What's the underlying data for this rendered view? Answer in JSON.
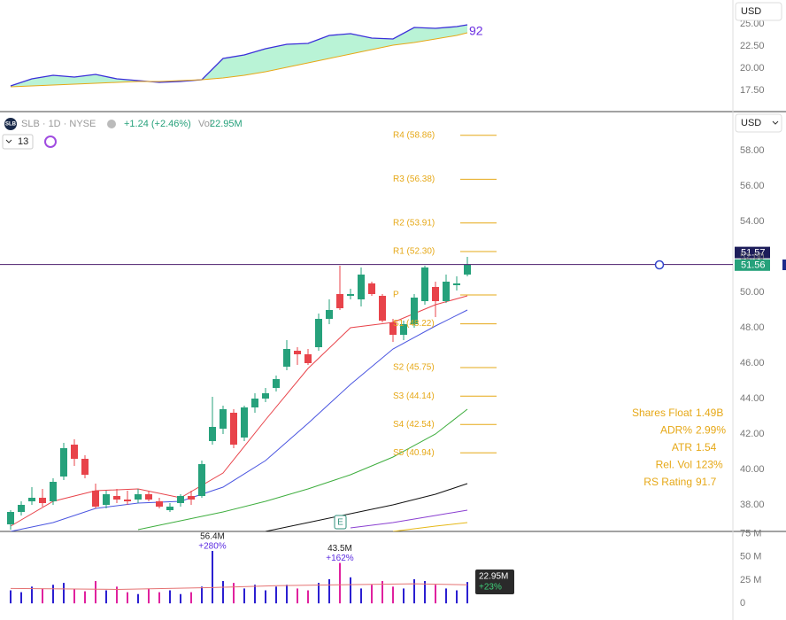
{
  "header": {
    "usd_top": "USD",
    "logo": "SLB",
    "symbol": "SLB · 1D · NYSE",
    "change": "+1.24 (+2.46%)",
    "vol_label": "Vol",
    "volume": "22.95M",
    "count": "13",
    "usd_main": "USD"
  },
  "stats": [
    {
      "label": "Shares Float",
      "value": "1.49B"
    },
    {
      "label": "ADR%",
      "value": "2.99%"
    },
    {
      "label": "ATR",
      "value": "1.54"
    },
    {
      "label": "Rel. Vol",
      "value": "123%"
    },
    {
      "label": "RS Rating",
      "value": "91.7"
    }
  ],
  "chart_data": [
    {
      "type": "area",
      "ylim": [
        15.2,
        27.7
      ],
      "yticks": [
        {
          "value": 17.5,
          "label": "17.50"
        },
        {
          "value": 20,
          "label": "20.00"
        },
        {
          "value": 22.5,
          "label": "22.50"
        },
        {
          "value": 25,
          "label": "25.00"
        }
      ],
      "x": [
        0,
        2,
        4,
        6,
        8,
        10,
        12,
        14,
        16,
        18,
        20,
        22,
        24,
        26,
        28,
        30,
        32,
        34,
        36,
        38,
        40,
        42,
        43
      ],
      "series": [
        {
          "color": "#3b2fd9",
          "values": [
            18.0,
            18.8,
            19.2,
            19.0,
            19.3,
            18.8,
            18.6,
            18.4,
            18.5,
            18.7,
            21.1,
            21.5,
            22.2,
            22.7,
            22.8,
            23.7,
            23.9,
            23.4,
            23.3,
            24.6,
            24.5,
            24.7,
            24.9
          ]
        },
        {
          "color": "#e6a817",
          "values": [
            17.9,
            18.0,
            18.1,
            18.2,
            18.3,
            18.4,
            18.5,
            18.5,
            18.6,
            18.7,
            18.9,
            19.2,
            19.6,
            20.1,
            20.6,
            21.1,
            21.6,
            22.1,
            22.6,
            22.9,
            23.3,
            23.7,
            24.0
          ]
        }
      ],
      "fill": "#b9f3d6",
      "annotation": "92",
      "annotation_color": "#6a2be0"
    },
    {
      "type": "candlestick",
      "ylim": [
        36.5,
        60.15
      ],
      "yticks": [
        {
          "value": 38,
          "label": "38.00"
        },
        {
          "value": 40,
          "label": "40.00"
        },
        {
          "value": 42,
          "label": "42.00"
        },
        {
          "value": 44,
          "label": "44.00"
        },
        {
          "value": 46,
          "label": "46.00"
        },
        {
          "value": 48,
          "label": "48.00"
        },
        {
          "value": 50,
          "label": "50.00"
        },
        {
          "value": 52,
          "label": "52.00"
        },
        {
          "value": 54,
          "label": "54.00"
        },
        {
          "value": 56,
          "label": "56.00"
        },
        {
          "value": 58,
          "label": "58.00"
        }
      ],
      "open": [
        36.9,
        37.6,
        38.2,
        38.4,
        38.2,
        39.6,
        41.4,
        40.6,
        38.8,
        38.0,
        38.5,
        38.3,
        38.3,
        38.6,
        38.2,
        37.7,
        38.1,
        38.5,
        38.5,
        41.6,
        42.3,
        43.2,
        41.8,
        43.5,
        44.0,
        44.6,
        45.8,
        46.7,
        46.5,
        46.9,
        48.5,
        49.9,
        49.8,
        49.6,
        50.5,
        49.8,
        48.3,
        47.6,
        48.2,
        49.5,
        50.3,
        49.5,
        50.4,
        51.0
      ],
      "high": [
        37.7,
        38.2,
        39.0,
        38.9,
        39.5,
        41.5,
        41.7,
        40.8,
        39.2,
        38.8,
        38.9,
        38.8,
        38.9,
        38.8,
        38.4,
        38.1,
        38.6,
        38.8,
        40.5,
        44.1,
        43.6,
        43.4,
        43.6,
        44.3,
        44.6,
        45.3,
        47.3,
        46.9,
        46.8,
        48.8,
        49.6,
        51.5,
        50.2,
        51.4,
        50.6,
        49.9,
        48.5,
        48.4,
        49.9,
        51.5,
        50.6,
        51.0,
        50.9,
        52.0
      ],
      "low": [
        36.6,
        37.4,
        38.0,
        37.9,
        38.0,
        39.4,
        40.2,
        39.5,
        37.8,
        37.8,
        38.1,
        38.0,
        38.1,
        38.2,
        37.8,
        37.6,
        37.9,
        38.0,
        38.4,
        41.4,
        42.0,
        41.2,
        41.6,
        43.2,
        43.8,
        44.4,
        45.6,
        45.9,
        45.9,
        46.7,
        48.2,
        49.0,
        49.6,
        49.2,
        49.8,
        48.3,
        47.2,
        47.3,
        48.0,
        49.3,
        48.6,
        49.4,
        50.1,
        50.9
      ],
      "close": [
        37.6,
        38.0,
        38.4,
        38.1,
        39.3,
        41.2,
        40.6,
        39.7,
        37.9,
        38.6,
        38.3,
        38.2,
        38.6,
        38.3,
        37.9,
        37.9,
        38.5,
        38.3,
        40.3,
        42.4,
        43.4,
        41.4,
        43.5,
        44.0,
        44.3,
        45.1,
        46.8,
        46.5,
        46.0,
        48.5,
        49.0,
        49.1,
        49.9,
        51.0,
        49.9,
        48.4,
        47.6,
        48.2,
        49.7,
        51.4,
        49.5,
        50.6,
        50.5,
        51.56
      ],
      "up_color": "#26a17b",
      "down_color": "#e8434a",
      "averages": [
        {
          "color": "#e8434a",
          "x": [
            0,
            4,
            8,
            12,
            16,
            20,
            24,
            28,
            32,
            36,
            40,
            43
          ],
          "values": [
            36.8,
            38.2,
            38.8,
            38.9,
            38.4,
            39.8,
            42.8,
            45.7,
            48.0,
            48.3,
            49.3,
            49.8
          ]
        },
        {
          "color": "#4a55e0",
          "x": [
            0,
            4,
            8,
            12,
            16,
            20,
            24,
            28,
            32,
            36,
            40,
            43
          ],
          "values": [
            36.5,
            37.0,
            37.8,
            38.1,
            38.2,
            39.0,
            40.5,
            42.6,
            44.8,
            46.8,
            48.1,
            49.0
          ]
        },
        {
          "color": "#3fae3f",
          "x": [
            12,
            16,
            20,
            24,
            28,
            32,
            36,
            40,
            43
          ],
          "values": [
            36.6,
            37.1,
            37.6,
            38.2,
            38.9,
            39.7,
            40.7,
            42.0,
            43.4
          ]
        },
        {
          "color": "#111111",
          "x": [
            24,
            28,
            32,
            36,
            40,
            43
          ],
          "values": [
            36.5,
            37.0,
            37.5,
            38.0,
            38.6,
            39.2
          ]
        },
        {
          "color": "#8a3fd1",
          "x": [
            32,
            36,
            40,
            43
          ],
          "values": [
            36.7,
            37.0,
            37.4,
            37.7
          ]
        },
        {
          "color": "#e6b817",
          "x": [
            36,
            40,
            43
          ],
          "values": [
            36.5,
            36.8,
            37.0
          ]
        }
      ],
      "pivots": [
        {
          "label": "R4 (58.86)",
          "value": 58.86
        },
        {
          "label": "R3 (56.38)",
          "value": 56.38
        },
        {
          "label": "R2 (53.91)",
          "value": 53.91
        },
        {
          "label": "R1 (52.30)",
          "value": 52.3
        },
        {
          "label": "P",
          "value": 49.85
        },
        {
          "label": "S1 (48.22)",
          "value": 48.22
        },
        {
          "label": "S2 (45.75)",
          "value": 45.75
        },
        {
          "label": "S3 (44.14)",
          "value": 44.14
        },
        {
          "label": "S4 (42.54)",
          "value": 42.54
        },
        {
          "label": "S5 (40.94)",
          "value": 40.94
        }
      ],
      "pivot_color": "#e6a817",
      "price_line": {
        "value": 51.57,
        "color": "#4a1b6b"
      },
      "last_price": 51.56,
      "event": "E"
    },
    {
      "type": "bar",
      "ylim": [
        -17.9,
        76.4
      ],
      "yticks": [
        0,
        {
          "value": 25,
          "label": "25 M"
        },
        {
          "value": 50,
          "label": "50 M"
        },
        {
          "value": 75,
          "label": "75 M"
        }
      ],
      "values": [
        14,
        12,
        18,
        16,
        20,
        22,
        15,
        13,
        24,
        14,
        18,
        12,
        10,
        16,
        12,
        14,
        10,
        12,
        18,
        56.4,
        24,
        22,
        16,
        20,
        14,
        18,
        20,
        16,
        14,
        22,
        26,
        43.5,
        28,
        16,
        20,
        24,
        18,
        16,
        26,
        24,
        20,
        16,
        14,
        22.95
      ],
      "value_labels": [
        null,
        null,
        null,
        null,
        null,
        null,
        null,
        null,
        null,
        null,
        null,
        null,
        null,
        null,
        null,
        null,
        null,
        null,
        null,
        "56.4M",
        null,
        null,
        null,
        null,
        null,
        null,
        null,
        null,
        null,
        null,
        null,
        "43.5M",
        null,
        null,
        null,
        null,
        null,
        null,
        null,
        null,
        null,
        null,
        null,
        "22.95M"
      ],
      "changes": [
        null,
        null,
        null,
        null,
        null,
        null,
        null,
        null,
        null,
        null,
        null,
        null,
        null,
        null,
        null,
        null,
        null,
        null,
        null,
        "+280%",
        null,
        null,
        null,
        null,
        null,
        null,
        null,
        null,
        null,
        null,
        null,
        "+162%",
        null,
        null,
        null,
        null,
        null,
        null,
        null,
        null,
        null,
        null,
        null,
        "+23%"
      ],
      "up_color": "#2b1fd1",
      "down_color": "#e0219e",
      "average": {
        "color": "#e57373",
        "x": [
          0,
          10,
          19,
          25,
          31,
          38,
          43
        ],
        "values": [
          16,
          15,
          17,
          19,
          20,
          21,
          20
        ]
      }
    }
  ]
}
